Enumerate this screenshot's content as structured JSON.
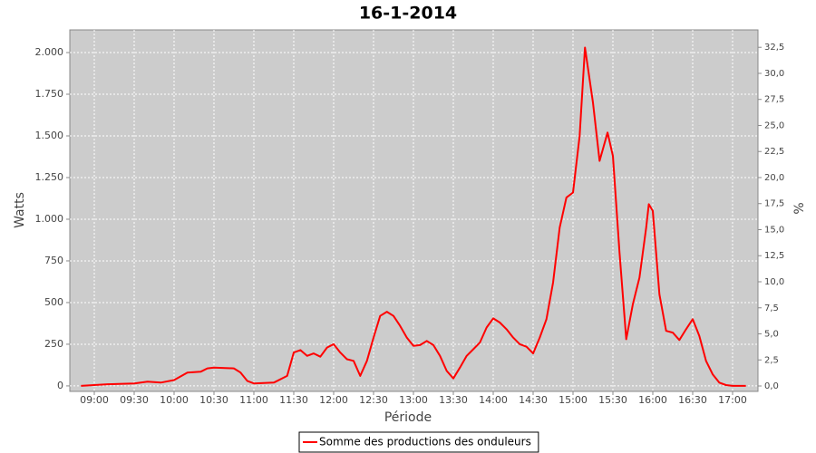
{
  "chart_data": {
    "type": "line",
    "title": "16-1-2014",
    "x_label": "Période",
    "y_label": "Watts",
    "y2_label": "%",
    "x": [
      530,
      540,
      550,
      570,
      580,
      590,
      600,
      610,
      620,
      625,
      630,
      645,
      650,
      655,
      660,
      675,
      685,
      690,
      695,
      700,
      705,
      710,
      715,
      720,
      725,
      730,
      735,
      740,
      745,
      750,
      755,
      760,
      765,
      770,
      775,
      780,
      785,
      790,
      795,
      800,
      805,
      810,
      815,
      820,
      825,
      830,
      835,
      840,
      845,
      850,
      855,
      860,
      865,
      870,
      875,
      880,
      885,
      890,
      895,
      900,
      905,
      909,
      915,
      920,
      926,
      930,
      935,
      940,
      945,
      950,
      955,
      957,
      960,
      965,
      970,
      975,
      980,
      985,
      990,
      995,
      1000,
      1005,
      1010,
      1015,
      1020,
      1030
    ],
    "series": [
      {
        "name": "Somme des productions des onduleurs",
        "color": "#ff0000",
        "values": [
          0,
          5,
          10,
          15,
          25,
          20,
          35,
          80,
          85,
          105,
          110,
          105,
          80,
          30,
          15,
          20,
          60,
          200,
          215,
          180,
          195,
          175,
          230,
          250,
          200,
          160,
          150,
          60,
          150,
          290,
          420,
          445,
          420,
          360,
          290,
          240,
          245,
          270,
          245,
          180,
          90,
          45,
          110,
          180,
          220,
          260,
          350,
          405,
          380,
          340,
          290,
          250,
          235,
          195,
          290,
          400,
          620,
          950,
          1130,
          1160,
          1500,
          2030,
          1700,
          1350,
          1520,
          1380,
          800,
          280,
          490,
          650,
          950,
          1090,
          1050,
          550,
          330,
          320,
          275,
          340,
          400,
          300,
          150,
          70,
          20,
          5,
          0,
          0
        ]
      }
    ],
    "xlim": [
      521.6,
      1039.1
    ],
    "xticks": [
      {
        "value": 540,
        "label": "09:00"
      },
      {
        "value": 570,
        "label": "09:30"
      },
      {
        "value": 600,
        "label": "10:00"
      },
      {
        "value": 630,
        "label": "10:30"
      },
      {
        "value": 660,
        "label": "11:00"
      },
      {
        "value": 690,
        "label": "11:30"
      },
      {
        "value": 720,
        "label": "12:00"
      },
      {
        "value": 750,
        "label": "12:30"
      },
      {
        "value": 780,
        "label": "13:00"
      },
      {
        "value": 810,
        "label": "13:30"
      },
      {
        "value": 840,
        "label": "14:00"
      },
      {
        "value": 870,
        "label": "14:30"
      },
      {
        "value": 900,
        "label": "15:00"
      },
      {
        "value": 930,
        "label": "15:30"
      },
      {
        "value": 960,
        "label": "16:00"
      },
      {
        "value": 990,
        "label": "16:30"
      },
      {
        "value": 1020,
        "label": "17:00"
      }
    ],
    "ylim": [
      -33,
      2136
    ],
    "yticks": [
      0,
      250,
      500,
      750,
      {
        "value": 1000,
        "label": "1.000"
      },
      {
        "value": 1250,
        "label": "1.250"
      },
      {
        "value": 1500,
        "label": "1.500"
      },
      {
        "value": 1750,
        "label": "1.750"
      },
      {
        "value": 2000,
        "label": "2.000"
      }
    ],
    "y2lim": [
      -0.52,
      34.17
    ],
    "y2ticks": [
      {
        "value": 0,
        "label": "0,0"
      },
      {
        "value": 2.5,
        "label": "2,5"
      },
      {
        "value": 5,
        "label": "5,0"
      },
      {
        "value": 7.5,
        "label": "7,5"
      },
      {
        "value": 10,
        "label": "10,0"
      },
      {
        "value": 12.5,
        "label": "12,5"
      },
      {
        "value": 15,
        "label": "15,0"
      },
      {
        "value": 17.5,
        "label": "17,5"
      },
      {
        "value": 20,
        "label": "20,0"
      },
      {
        "value": 22.5,
        "label": "22,5"
      },
      {
        "value": 25,
        "label": "25,0"
      },
      {
        "value": 27.5,
        "label": "27,5"
      },
      {
        "value": 30,
        "label": "30,0"
      },
      {
        "value": 32.5,
        "label": "32,5"
      }
    ],
    "grid": true,
    "legend": "bottom"
  }
}
